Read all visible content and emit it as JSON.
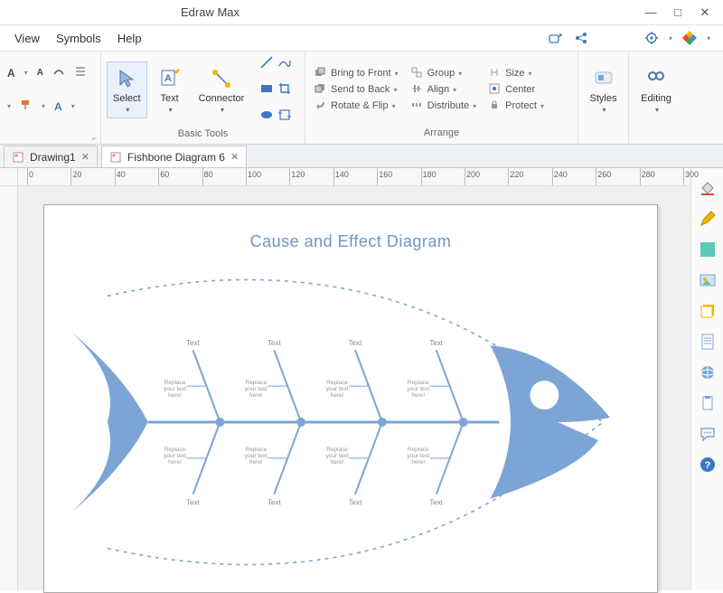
{
  "app": {
    "title": "Edraw Max"
  },
  "window_controls": {
    "minimize": "—",
    "maximize": "□",
    "close": "✕"
  },
  "menu": {
    "view": "View",
    "symbols": "Symbols",
    "help": "Help"
  },
  "quickaccess_icons": {
    "cloud_share": "cloud-share",
    "share": "share",
    "settings": "settings",
    "logo": "edraw-logo"
  },
  "ribbon": {
    "font_group": {
      "label": ""
    },
    "basic_tools": {
      "label": "Basic Tools",
      "select": "Select",
      "text": "Text",
      "connector": "Connector"
    },
    "arrange": {
      "label": "Arrange",
      "bring_to_front": "Bring to Front",
      "send_to_back": "Send to Back",
      "rotate_flip": "Rotate & Flip",
      "group": "Group",
      "align": "Align",
      "distribute": "Distribute",
      "size": "Size",
      "center": "Center",
      "protect": "Protect"
    },
    "styles": {
      "label": "Styles"
    },
    "editing": {
      "label": "Editing"
    }
  },
  "tabs": {
    "items": [
      {
        "label": "Drawing1",
        "active": false
      },
      {
        "label": "Fishbone Diagram 6",
        "active": true
      }
    ]
  },
  "ruler": {
    "start": 0,
    "end": 300,
    "step": 20
  },
  "diagram": {
    "title": "Cause and Effect Diagram",
    "title_color": "#6b96c9",
    "fish_color": "#7ca5d6",
    "outline_color": "#7ca5d6",
    "bone_labels_top": [
      "Text",
      "Text",
      "Text",
      "Text"
    ],
    "bone_labels_bottom": [
      "Text",
      "Text",
      "Text",
      "Text"
    ],
    "cause_placeholder": "Replace your text here!",
    "causes_top": [
      "Replace your text here!",
      "Replace your text here!",
      "Replace your text here!",
      "Replace your text here!"
    ],
    "causes_bottom": [
      "Replace your text here!",
      "Replace your text here!",
      "Replace your text here!",
      "Replace your text here!"
    ]
  },
  "colors": {
    "accent": "#3b78c4",
    "ribbon_bg": "#fafafa",
    "selection": "#eaf1fb"
  }
}
